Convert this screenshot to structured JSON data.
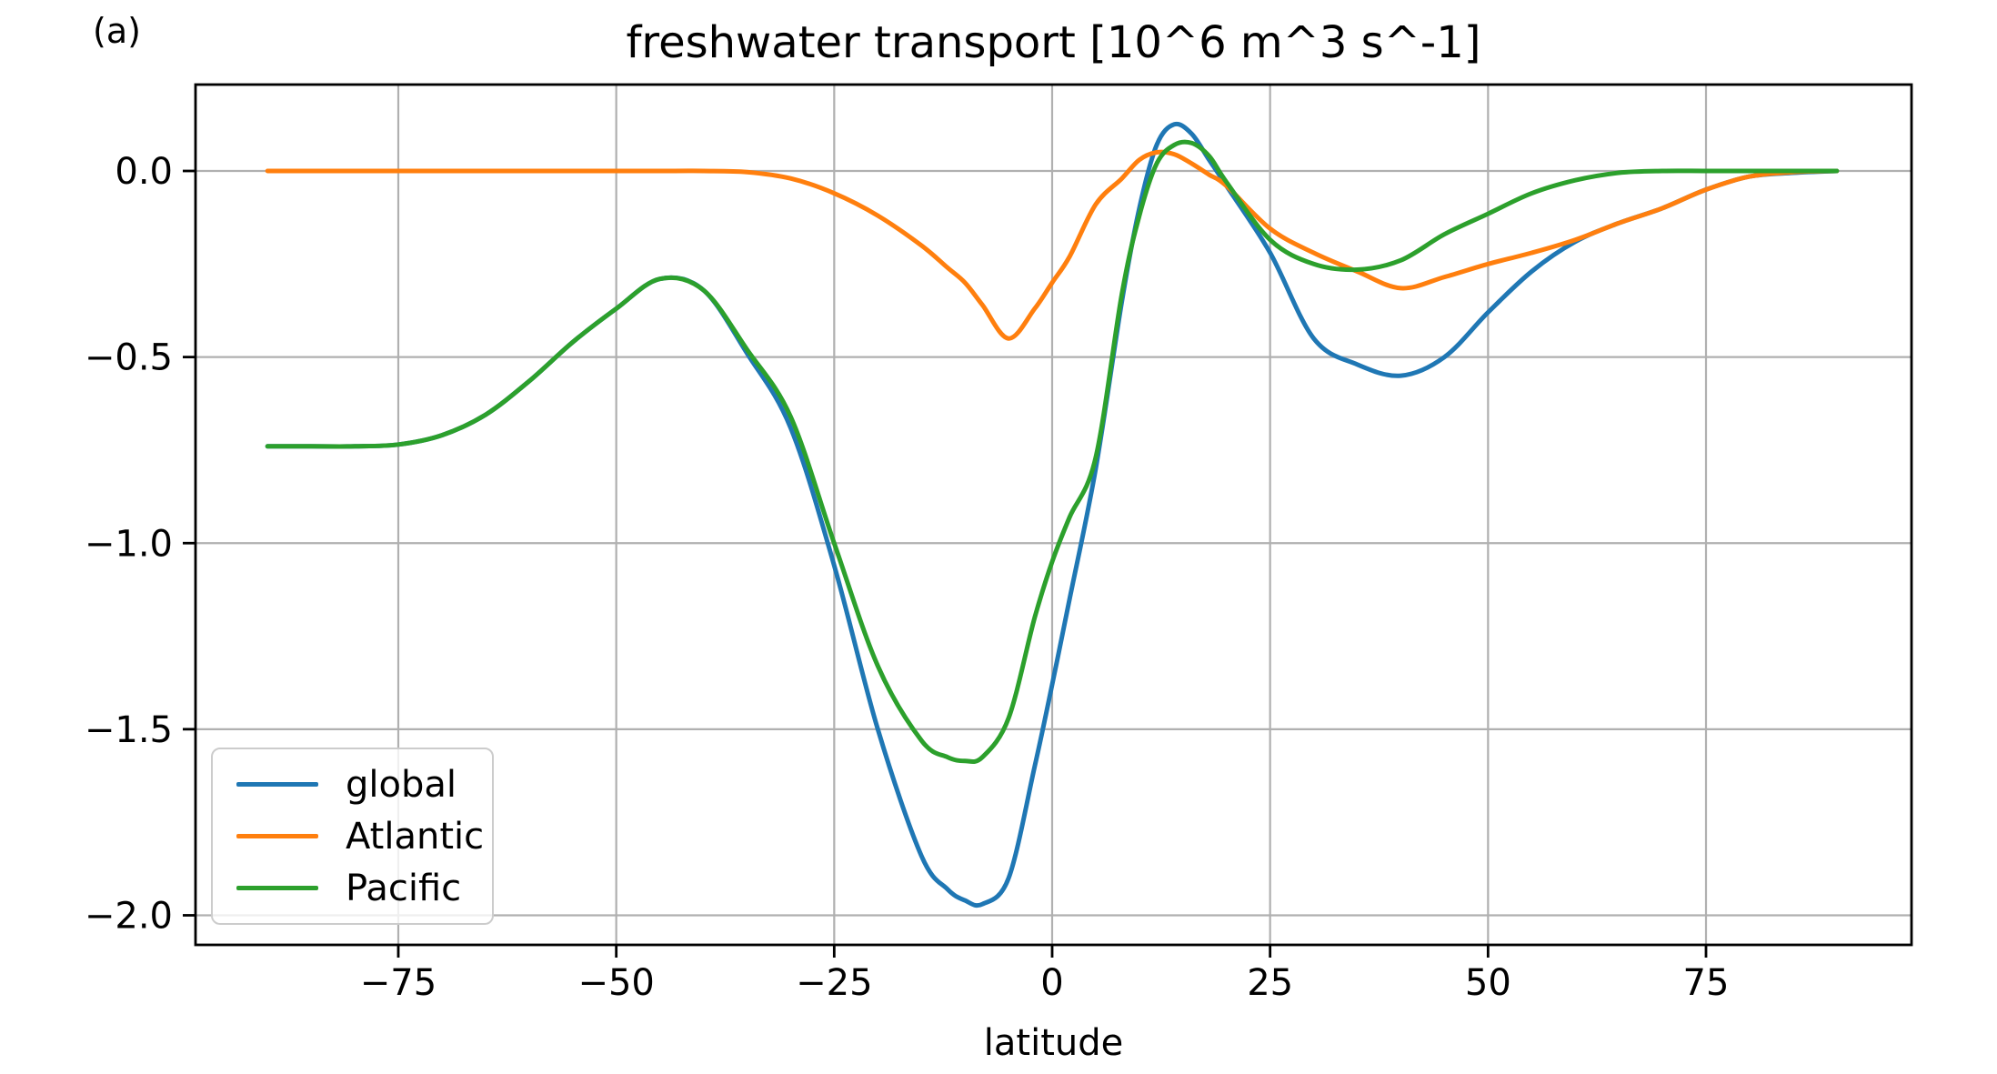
{
  "panel_label": "(a)",
  "chart_data": {
    "type": "line",
    "title": "freshwater transport [10^6 m^3 s^-1]",
    "xlabel": "latitude",
    "ylabel": "",
    "grid": true,
    "legend_position": "lower left",
    "xlim": [
      -98.3,
      98.6
    ],
    "ylim": [
      -2.08,
      0.232
    ],
    "x_ticks": [
      -75,
      -50,
      -25,
      0,
      25,
      50,
      75
    ],
    "y_ticks": [
      0.0,
      -0.5,
      -1.0,
      -1.5,
      -2.0
    ],
    "grid_color": "#b0b0b0",
    "spine_color": "#000000",
    "x": [
      -90,
      -85,
      -80,
      -75,
      -70,
      -65,
      -60,
      -55,
      -50,
      -45,
      -40,
      -35,
      -30,
      -25,
      -20,
      -15,
      -12,
      -10,
      -8,
      -5,
      -2,
      0,
      2,
      5,
      8,
      10,
      12,
      14,
      16,
      18,
      20,
      25,
      30,
      35,
      40,
      45,
      50,
      55,
      60,
      65,
      70,
      75,
      80,
      85,
      90
    ],
    "series": [
      {
        "name": "global",
        "color": "#1f77b4",
        "values": [
          -0.74,
          -0.74,
          -0.74,
          -0.735,
          -0.71,
          -0.655,
          -0.565,
          -0.46,
          -0.37,
          -0.29,
          -0.32,
          -0.49,
          -0.69,
          -1.06,
          -1.5,
          -1.84,
          -1.93,
          -1.96,
          -1.97,
          -1.9,
          -1.6,
          -1.38,
          -1.15,
          -0.8,
          -0.35,
          -0.1,
          0.07,
          0.125,
          0.1,
          0.03,
          -0.04,
          -0.22,
          -0.45,
          -0.52,
          -0.55,
          -0.5,
          -0.38,
          -0.27,
          -0.19,
          -0.14,
          -0.1,
          -0.05,
          -0.015,
          -0.005,
          0.0
        ]
      },
      {
        "name": "Atlantic",
        "color": "#ff7f0e",
        "values": [
          0,
          0,
          0,
          0,
          0,
          0,
          0,
          0,
          0,
          0,
          0,
          -0.003,
          -0.02,
          -0.06,
          -0.12,
          -0.2,
          -0.26,
          -0.3,
          -0.36,
          -0.45,
          -0.37,
          -0.3,
          -0.23,
          -0.09,
          -0.02,
          0.03,
          0.05,
          0.045,
          0.02,
          -0.01,
          -0.04,
          -0.155,
          -0.22,
          -0.27,
          -0.315,
          -0.285,
          -0.25,
          -0.22,
          -0.185,
          -0.14,
          -0.1,
          -0.05,
          -0.015,
          -0.003,
          0.0
        ]
      },
      {
        "name": "Pacific",
        "color": "#2ca02c",
        "values": [
          -0.74,
          -0.74,
          -0.74,
          -0.735,
          -0.71,
          -0.655,
          -0.565,
          -0.46,
          -0.37,
          -0.29,
          -0.32,
          -0.48,
          -0.66,
          -1.0,
          -1.33,
          -1.53,
          -1.575,
          -1.585,
          -1.575,
          -1.47,
          -1.2,
          -1.05,
          -0.93,
          -0.77,
          -0.33,
          -0.12,
          0.02,
          0.07,
          0.075,
          0.04,
          -0.03,
          -0.185,
          -0.25,
          -0.265,
          -0.24,
          -0.17,
          -0.115,
          -0.06,
          -0.025,
          -0.005,
          0.0,
          0.0,
          0.0,
          0.0,
          0.0
        ]
      }
    ]
  }
}
